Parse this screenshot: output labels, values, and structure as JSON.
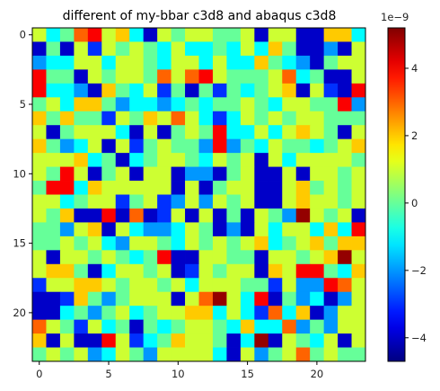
{
  "chart_data": {
    "type": "heatmap",
    "title": "different of my-bbar c3d8 and abaqus c3d8",
    "xlabel": "",
    "ylabel": "",
    "colormap": "jet",
    "rows": 24,
    "cols": 24,
    "x_ticks": [
      "0",
      "5",
      "10",
      "15",
      "20"
    ],
    "y_ticks": [
      "0",
      "5",
      "10",
      "15",
      "20"
    ],
    "colorbar": {
      "vmin": -4.7,
      "vmax": 5.2,
      "ticks": [
        "−4",
        "−2",
        "0",
        "2",
        "4"
      ],
      "tick_values": [
        -4,
        -2,
        0,
        2,
        4
      ],
      "exponent_label": "1e−9"
    },
    "values": [
      [
        1,
        -1,
        0,
        3,
        4,
        1,
        2,
        -1,
        -4,
        1,
        0,
        1,
        1,
        0,
        0,
        1,
        -4,
        1,
        1,
        -4,
        -4,
        2,
        2,
        -1
      ],
      [
        -4,
        0,
        -4,
        1,
        -3,
        1,
        0,
        1,
        0,
        -1,
        1,
        -1,
        -1,
        0,
        -1,
        1,
        -1,
        2,
        0,
        -4,
        -4,
        -2,
        -4,
        1
      ],
      [
        -2,
        -1,
        -1,
        1,
        1,
        -1,
        1,
        1,
        0,
        -1,
        1,
        1,
        -1,
        1,
        -1,
        -1,
        2,
        0,
        -1,
        -2,
        -4,
        0,
        1,
        1
      ],
      [
        4,
        0,
        0,
        -4,
        1,
        0,
        1,
        1,
        0,
        3,
        1,
        3,
        4,
        1,
        0,
        0,
        0,
        1,
        3,
        -1,
        0,
        -4,
        -4,
        1
      ],
      [
        4,
        -1,
        -1,
        -2,
        -4,
        2,
        0,
        -1,
        1,
        -3,
        0,
        -4,
        0,
        -3,
        0,
        -1,
        0,
        1,
        2,
        -4,
        1,
        -3,
        -4,
        4
      ],
      [
        0,
        1,
        -1,
        2,
        2,
        0,
        -2,
        -1,
        -1,
        -2,
        -1,
        0,
        -1,
        0,
        0,
        1,
        0,
        -1,
        1,
        1,
        0,
        0,
        4,
        -2
      ],
      [
        2,
        0,
        2,
        0,
        0,
        -3,
        1,
        0,
        2,
        1,
        3,
        1,
        -1,
        -3,
        -1,
        1,
        0,
        1,
        0,
        1,
        1,
        0,
        0,
        0
      ],
      [
        1,
        -4,
        0,
        1,
        1,
        1,
        -1,
        -4,
        1,
        -4,
        0,
        1,
        0,
        4,
        -1,
        -1,
        1,
        -1,
        1,
        2,
        1,
        0,
        -4,
        1
      ],
      [
        2,
        0,
        -2,
        -1,
        1,
        -4,
        1,
        -3,
        0,
        1,
        0,
        0,
        -2,
        4,
        -2,
        0,
        -1,
        1,
        0,
        0,
        -1,
        0,
        1,
        2
      ],
      [
        1,
        1,
        1,
        2,
        -1,
        0,
        -4,
        -1,
        0,
        1,
        1,
        0,
        -1,
        1,
        0,
        1,
        -4,
        1,
        -1,
        1,
        1,
        1,
        1,
        0
      ],
      [
        1,
        0,
        4,
        1,
        -4,
        0,
        1,
        -4,
        1,
        1,
        -4,
        -2,
        -2,
        -4,
        0,
        1,
        -4,
        -4,
        1,
        -4,
        1,
        1,
        0,
        1
      ],
      [
        0,
        4,
        4,
        -1,
        2,
        1,
        1,
        1,
        1,
        1,
        -4,
        1,
        -4,
        0,
        1,
        1,
        -4,
        -4,
        1,
        2,
        0,
        1,
        0,
        1
      ],
      [
        1,
        1,
        -1,
        0,
        1,
        1,
        -3,
        0,
        1,
        -3,
        -2,
        1,
        -2,
        1,
        0,
        1,
        -4,
        -4,
        1,
        2,
        1,
        1,
        0,
        1
      ],
      [
        1,
        0,
        2,
        -4,
        -4,
        4,
        -4,
        3,
        -4,
        -3,
        1,
        -4,
        1,
        -4,
        0,
        -4,
        1,
        0,
        -2,
        5,
        1,
        0,
        1,
        -4
      ],
      [
        0,
        0,
        -2,
        1,
        2,
        -4,
        1,
        -1,
        -2,
        -2,
        -1,
        1,
        0,
        -4,
        -2,
        -4,
        1,
        -1,
        1,
        1,
        -1,
        2,
        -1,
        4
      ],
      [
        0,
        0,
        1,
        0,
        1,
        -1,
        -2,
        1,
        1,
        0,
        -1,
        1,
        0,
        1,
        0,
        1,
        2,
        -1,
        0,
        1,
        2,
        0,
        2,
        2
      ],
      [
        1,
        -4,
        1,
        1,
        0,
        1,
        0,
        -1,
        0,
        4,
        -4,
        -4,
        1,
        1,
        0,
        0,
        -4,
        1,
        1,
        0,
        1,
        2,
        5,
        1
      ],
      [
        1,
        2,
        2,
        0,
        -4,
        -1,
        1,
        1,
        0,
        1,
        -4,
        -3,
        1,
        0,
        1,
        1,
        -4,
        2,
        1,
        4,
        4,
        0,
        -1,
        2
      ],
      [
        -3,
        1,
        1,
        2,
        2,
        1,
        0,
        1,
        1,
        0,
        1,
        -1,
        1,
        1,
        1,
        0,
        0,
        -3,
        1,
        -2,
        -2,
        4,
        3,
        1
      ],
      [
        -4,
        -4,
        -3,
        2,
        0,
        -2,
        0,
        1,
        1,
        1,
        -4,
        1,
        3,
        5,
        1,
        -1,
        4,
        -4,
        0,
        -2,
        -1,
        -4,
        -2,
        1
      ],
      [
        -4,
        -4,
        -1,
        0,
        -2,
        0,
        1,
        -1,
        0,
        1,
        1,
        2,
        2,
        -1,
        1,
        -1,
        -3,
        3,
        -1,
        2,
        -4,
        -2,
        1,
        1
      ],
      [
        3,
        1,
        0,
        -3,
        1,
        -1,
        0,
        -4,
        0,
        -1,
        0,
        1,
        1,
        0,
        -1,
        2,
        -1,
        -1,
        3,
        -2,
        0,
        -2,
        1,
        1
      ],
      [
        2,
        -4,
        1,
        -4,
        -4,
        4,
        1,
        -3,
        -1,
        0,
        2,
        1,
        1,
        0,
        -4,
        -1,
        5,
        -4,
        1,
        0,
        -1,
        1,
        -4,
        1
      ],
      [
        0,
        1,
        0,
        1,
        -2,
        -1,
        1,
        0,
        -2,
        1,
        1,
        1,
        1,
        -1,
        -4,
        1,
        -2,
        0,
        1,
        3,
        0,
        1,
        0,
        0
      ]
    ]
  }
}
